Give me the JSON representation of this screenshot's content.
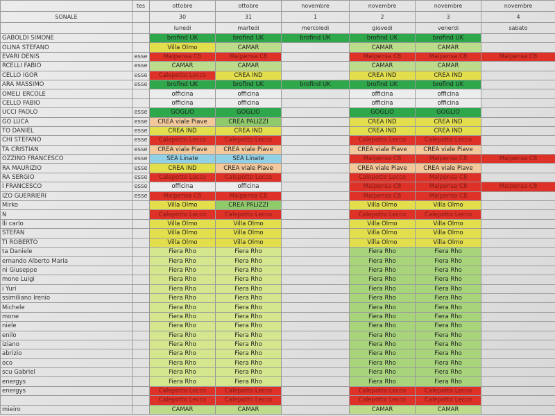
{
  "header": [
    [
      null,
      "tes",
      "ottobre",
      "ottobre",
      "novembre",
      "novembre",
      "novembre",
      "novembre"
    ],
    [
      "SONALE",
      null,
      "30",
      "31",
      "1",
      "2",
      "3",
      "4"
    ],
    [
      null,
      null,
      "lunedi",
      "martedi",
      "mercoledi",
      "giovedi",
      "venerdi",
      "sabato"
    ]
  ],
  "rows": [
    [
      "GABOLDI SIMONE",
      null,
      {
        "text": "brofind UK",
        "color": "#2ea84b"
      },
      {
        "text": "brofind UK",
        "color": "#2ea84b"
      },
      {
        "text": "brofind UK",
        "color": "#2ea84b"
      },
      {
        "text": "brofind UK",
        "color": "#2ea84b"
      },
      {
        "text": "brofind UK",
        "color": "#2ea84b"
      },
      null
    ],
    [
      "OLINA STEFANO",
      null,
      {
        "text": "Villa Olmo",
        "color": "#e3df4c"
      },
      {
        "text": "CAMAR",
        "color": "#bcdc8c"
      },
      null,
      {
        "text": "CAMAR",
        "color": "#bcdc8c"
      },
      {
        "text": "CAMAR",
        "color": "#bcdc8c"
      },
      null
    ],
    [
      "EVARI DENIS",
      "esse",
      {
        "text": "Malpensa C8",
        "color": "#de3229"
      },
      {
        "text": "Malpensa C8",
        "color": "#de3229"
      },
      null,
      {
        "text": "Malpensa C8",
        "color": "#de3229"
      },
      {
        "text": "Malpensa C8",
        "color": "#de3229"
      },
      {
        "text": "Malpensa C8",
        "color": "#de3229"
      }
    ],
    [
      "RCELLI FABIO",
      "esse",
      {
        "text": "CAMAR",
        "color": "#bcdc8c"
      },
      {
        "text": "CAMAR",
        "color": "#bcdc8c"
      },
      null,
      {
        "text": "CAMAR",
        "color": "#bcdc8c"
      },
      {
        "text": "CAMAR",
        "color": "#bcdc8c"
      },
      null
    ],
    [
      "CELLO IGOR",
      "esse",
      {
        "text": "Calepotto Lecco",
        "color": "#de3229"
      },
      {
        "text": "CREA IND",
        "color": "#e3df4c"
      },
      null,
      {
        "text": "CREA IND",
        "color": "#e3df4c"
      },
      {
        "text": "CREA IND",
        "color": "#e3df4c"
      },
      null
    ],
    [
      "ARA MASSIMO",
      "esse",
      {
        "text": "brofind UK",
        "color": "#2ea84b"
      },
      {
        "text": "brofind UK",
        "color": "#2ea84b"
      },
      {
        "text": "brofind UK",
        "color": "#2ea84b"
      },
      {
        "text": "brofind UK",
        "color": "#2ea84b"
      },
      {
        "text": "brofind UK",
        "color": "#2ea84b"
      },
      null
    ],
    [
      "OMELI ERCOLE",
      null,
      {
        "text": "officina",
        "color": "#ececec"
      },
      {
        "text": "officina",
        "color": "#ececec"
      },
      null,
      {
        "text": "officina",
        "color": "#ececec"
      },
      {
        "text": "officina",
        "color": "#ececec"
      },
      null
    ],
    [
      "CELLO FABIO",
      null,
      {
        "text": "officina",
        "color": "#ececec"
      },
      {
        "text": "officina",
        "color": "#ececec"
      },
      null,
      {
        "text": "officina",
        "color": "#ececec"
      },
      {
        "text": "officina",
        "color": "#ececec"
      },
      null
    ],
    [
      "UCCI PAOLO",
      "esse",
      {
        "text": "GOGLIO",
        "color": "#2ea84b"
      },
      {
        "text": "GOGLIO",
        "color": "#2ea84b"
      },
      null,
      {
        "text": "GOGLIO",
        "color": "#2ea84b"
      },
      {
        "text": "GOGLIO",
        "color": "#2ea84b"
      },
      null
    ],
    [
      "GO LUCA",
      "esse",
      {
        "text": "CREA  viale Piave",
        "color": "#f3c99b"
      },
      {
        "text": "CREA PALIZZI",
        "color": "#8fcb6a"
      },
      null,
      {
        "text": "CREA  IND",
        "color": "#e3df4c"
      },
      {
        "text": "CREA  IND",
        "color": "#e3df4c"
      },
      null
    ],
    [
      "TO DANIEL",
      "esse",
      {
        "text": "CREA  IND",
        "color": "#e3df4c"
      },
      {
        "text": "CREA  IND",
        "color": "#e3df4c"
      },
      null,
      {
        "text": "CREA  IND",
        "color": "#e3df4c"
      },
      {
        "text": "CREA  IND",
        "color": "#e3df4c"
      },
      null
    ],
    [
      "CHI STEFANO",
      "esse",
      {
        "text": "Calepotto Lecco",
        "color": "#de3229"
      },
      {
        "text": "Calepotto Lecco",
        "color": "#de3229"
      },
      null,
      {
        "text": "Calepotto Lecco",
        "color": "#de3229"
      },
      {
        "text": "Calepotto Lecco",
        "color": "#de3229"
      },
      null
    ],
    [
      "TA CRISTIAN",
      "esse",
      {
        "text": "CREA  viale Piave",
        "color": "#f3c99b"
      },
      {
        "text": "CREA viale Piave",
        "color": "#f3c99b"
      },
      null,
      {
        "text": "CREA  viale Piave",
        "color": "#f3c99b"
      },
      {
        "text": "CREA  viale Piave",
        "color": "#f3c99b"
      },
      null
    ],
    [
      "OZZINO FRANCESCO",
      "esse",
      {
        "text": "SEA Linate",
        "color": "#92d0e6"
      },
      {
        "text": "SEA Linate",
        "color": "#92d0e6"
      },
      null,
      {
        "text": "Malpensa C8",
        "color": "#de3229"
      },
      {
        "text": "Malpensa C8",
        "color": "#de3229"
      },
      {
        "text": "Malpensa C8",
        "color": "#de3229"
      }
    ],
    [
      "RA MAURIZIO",
      "esse",
      {
        "text": "CREA  IND",
        "color": "#e3df4c"
      },
      {
        "text": "CREA  viale Piave",
        "color": "#f3c99b"
      },
      null,
      {
        "text": "CREA  viale Piave",
        "color": "#f3c99b"
      },
      {
        "text": "CREA  viale Piave",
        "color": "#f3c99b"
      },
      null
    ],
    [
      "RA SERGIO",
      "esse",
      {
        "text": "Calepotto Lecco",
        "color": "#de3229"
      },
      {
        "text": "Calepotto Lecco",
        "color": "#de3229"
      },
      null,
      {
        "text": "Calepotto Lecco",
        "color": "#de3229"
      },
      {
        "text": "Malpensa C8",
        "color": "#de3229"
      },
      null
    ],
    [
      "I FRANCESCO",
      "esse",
      {
        "text": "officina",
        "color": "#ececec"
      },
      {
        "text": "officina",
        "color": "#ececec"
      },
      null,
      {
        "text": "Malpensa C8",
        "color": "#de3229"
      },
      {
        "text": "Malpensa C8",
        "color": "#de3229"
      },
      {
        "text": "Malpensa C8",
        "color": "#de3229"
      }
    ],
    [
      "IZO  GUERRIERI",
      "esse",
      {
        "text": "Malpensa C8",
        "color": "#de3229"
      },
      {
        "text": "Malpensa C8",
        "color": "#de3229"
      },
      null,
      {
        "text": "Malpensa C8",
        "color": "#de3229"
      },
      {
        "text": "Malpensa C8",
        "color": "#de3229"
      },
      null
    ],
    [
      "Mirko",
      null,
      {
        "text": "Villa Olmo",
        "color": "#e3df4c"
      },
      {
        "text": "CREA PALIZZI",
        "color": "#8fcb6a"
      },
      null,
      {
        "text": "Villa Olmo",
        "color": "#e3df4c"
      },
      {
        "text": "Villa Olmo",
        "color": "#e3df4c"
      },
      null
    ],
    [
      "N",
      null,
      {
        "text": "Calepotto Lecco",
        "color": "#de3229"
      },
      {
        "text": "Calepotto Lecco",
        "color": "#de3229"
      },
      null,
      {
        "text": "Calepotto Lecco",
        "color": "#de3229"
      },
      {
        "text": "Calepotto Lecco",
        "color": "#de3229"
      },
      null
    ],
    [
      "lli carlo",
      null,
      {
        "text": "Villa Olmo",
        "color": "#e3df4c"
      },
      {
        "text": "Villa Olmo",
        "color": "#e3df4c"
      },
      null,
      {
        "text": "Villa Olmo",
        "color": "#e3df4c"
      },
      {
        "text": "Villa Olmo",
        "color": "#e3df4c"
      },
      null
    ],
    [
      "STEFAN",
      null,
      {
        "text": "Villa Olmo",
        "color": "#e3df4c"
      },
      {
        "text": "Villa Olmo",
        "color": "#e3df4c"
      },
      null,
      {
        "text": "Villa Olmo",
        "color": "#e3df4c"
      },
      {
        "text": "Villa Olmo",
        "color": "#e3df4c"
      },
      null
    ],
    [
      "TI ROBERTO",
      null,
      {
        "text": "Villa Olmo",
        "color": "#e3df4c"
      },
      {
        "text": "Villa Olmo",
        "color": "#e3df4c"
      },
      null,
      {
        "text": "Villa Olmo",
        "color": "#e3df4c"
      },
      {
        "text": "Villa Olmo",
        "color": "#e3df4c"
      },
      null
    ],
    [
      "ta Daniele",
      null,
      {
        "text": "Fiera Rho",
        "color": "#d4e68e"
      },
      {
        "text": "Fiera Rho",
        "color": "#d4e68e"
      },
      null,
      {
        "text": "Fiera Rho",
        "color": "#a8d47c"
      },
      {
        "text": "Fiera Rho",
        "color": "#a8d47c"
      },
      null
    ],
    [
      "ernando Alberto Maria",
      null,
      {
        "text": "Fiera Rho",
        "color": "#d4e68e"
      },
      {
        "text": "Fiera Rho",
        "color": "#d4e68e"
      },
      null,
      {
        "text": "Fiera Rho",
        "color": "#a8d47c"
      },
      {
        "text": "Fiera Rho",
        "color": "#a8d47c"
      },
      null
    ],
    [
      "ni Giuseppe",
      null,
      {
        "text": "Fiera Rho",
        "color": "#d4e68e"
      },
      {
        "text": "Fiera Rho",
        "color": "#d4e68e"
      },
      null,
      {
        "text": "Fiera Rho",
        "color": "#a8d47c"
      },
      {
        "text": "Fiera Rho",
        "color": "#a8d47c"
      },
      null
    ],
    [
      "mone Luigi",
      null,
      {
        "text": "Fiera Rho",
        "color": "#d4e68e"
      },
      {
        "text": "Fiera Rho",
        "color": "#d4e68e"
      },
      null,
      {
        "text": "Fiera Rho",
        "color": "#a8d47c"
      },
      {
        "text": "Fiera Rho",
        "color": "#a8d47c"
      },
      null
    ],
    [
      "i Yuri",
      null,
      {
        "text": "Fiera Rho",
        "color": "#d4e68e"
      },
      {
        "text": "Fiera Rho",
        "color": "#d4e68e"
      },
      null,
      {
        "text": "Fiera Rho",
        "color": "#a8d47c"
      },
      {
        "text": "Fiera Rho",
        "color": "#a8d47c"
      },
      null
    ],
    [
      "ssimiliano Irenio",
      null,
      {
        "text": "Fiera Rho",
        "color": "#d4e68e"
      },
      {
        "text": "Fiera Rho",
        "color": "#d4e68e"
      },
      null,
      {
        "text": "Fiera Rho",
        "color": "#a8d47c"
      },
      {
        "text": "Fiera Rho",
        "color": "#a8d47c"
      },
      null
    ],
    [
      "Michele",
      null,
      {
        "text": "Fiera Rho",
        "color": "#d4e68e"
      },
      {
        "text": "Fiera Rho",
        "color": "#d4e68e"
      },
      null,
      {
        "text": "Fiera Rho",
        "color": "#a8d47c"
      },
      {
        "text": "Fiera Rho",
        "color": "#a8d47c"
      },
      null
    ],
    [
      "mone",
      null,
      {
        "text": "Fiera Rho",
        "color": "#d4e68e"
      },
      {
        "text": "Fiera Rho",
        "color": "#d4e68e"
      },
      null,
      {
        "text": "Fiera Rho",
        "color": "#a8d47c"
      },
      {
        "text": "Fiera Rho",
        "color": "#a8d47c"
      },
      null
    ],
    [
      "niele",
      null,
      {
        "text": "Fiera Rho",
        "color": "#d4e68e"
      },
      {
        "text": "Fiera Rho",
        "color": "#d4e68e"
      },
      null,
      {
        "text": "Fiera Rho",
        "color": "#a8d47c"
      },
      {
        "text": "Fiera Rho",
        "color": "#a8d47c"
      },
      null
    ],
    [
      "enilo",
      null,
      {
        "text": "Fiera Rho",
        "color": "#d4e68e"
      },
      {
        "text": "Fiera Rho",
        "color": "#d4e68e"
      },
      null,
      {
        "text": "Fiera Rho",
        "color": "#a8d47c"
      },
      {
        "text": "Fiera Rho",
        "color": "#a8d47c"
      },
      null
    ],
    [
      "iziano",
      null,
      {
        "text": "Fiera Rho",
        "color": "#d4e68e"
      },
      {
        "text": "Fiera Rho",
        "color": "#d4e68e"
      },
      null,
      {
        "text": "Fiera Rho",
        "color": "#a8d47c"
      },
      {
        "text": "Fiera Rho",
        "color": "#a8d47c"
      },
      null
    ],
    [
      "abrizio",
      null,
      {
        "text": "Fiera Rho",
        "color": "#d4e68e"
      },
      {
        "text": "Fiera Rho",
        "color": "#d4e68e"
      },
      null,
      {
        "text": "Fiera Rho",
        "color": "#a8d47c"
      },
      {
        "text": "Fiera Rho",
        "color": "#a8d47c"
      },
      null
    ],
    [
      "oco",
      null,
      {
        "text": "Fiera Rho",
        "color": "#d4e68e"
      },
      {
        "text": "Fiera Rho",
        "color": "#d4e68e"
      },
      null,
      {
        "text": "Fiera Rho",
        "color": "#a8d47c"
      },
      {
        "text": "Fiera Rho",
        "color": "#a8d47c"
      },
      null
    ],
    [
      "scu Gabriel",
      null,
      {
        "text": "Fiera Rho",
        "color": "#d4e68e"
      },
      {
        "text": "Fiera Rho",
        "color": "#d4e68e"
      },
      null,
      {
        "text": "Fiera Rho",
        "color": "#a8d47c"
      },
      {
        "text": "Fiera Rho",
        "color": "#a8d47c"
      },
      null
    ],
    [
      "energys",
      null,
      {
        "text": "Fiera Rho",
        "color": "#d4e68e"
      },
      {
        "text": "Fiera Rho",
        "color": "#d4e68e"
      },
      null,
      {
        "text": "Fiera Rho",
        "color": "#a8d47c"
      },
      {
        "text": "Fiera Rho",
        "color": "#a8d47c"
      },
      null
    ],
    [
      "energys",
      null,
      {
        "text": "Calepotto Lecco",
        "color": "#de3229"
      },
      {
        "text": "Calepotto Lecco",
        "color": "#de3229"
      },
      null,
      {
        "text": "Calepotto Lecco",
        "color": "#de3229"
      },
      {
        "text": "Calepotto Lecco",
        "color": "#de3229"
      },
      null
    ],
    [
      null,
      null,
      {
        "text": "Calepotto Lecco",
        "color": "#de3229"
      },
      {
        "text": "Calepotto Lecco",
        "color": "#de3229"
      },
      null,
      {
        "text": "Calepotto Lecco",
        "color": "#de3229"
      },
      {
        "text": "Calepotto Lecco",
        "color": "#de3229"
      },
      null
    ],
    [
      "mieiro",
      null,
      {
        "text": "CAMAR",
        "color": "#bcdc8c"
      },
      {
        "text": "CAMAR",
        "color": "#bcdc8c"
      },
      null,
      {
        "text": "CAMAR",
        "color": "#bcdc8c"
      },
      {
        "text": "CAMAR",
        "color": "#bcdc8c"
      },
      null
    ]
  ]
}
